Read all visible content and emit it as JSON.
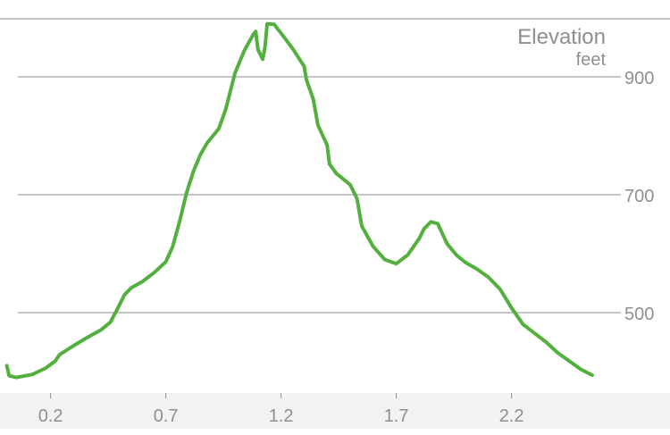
{
  "colors": {
    "line": "#53b03f",
    "grid": "#8e8e93",
    "text": "#8e8e93",
    "axis_band": "#f2f2f2",
    "background": "#ffffff"
  },
  "chart_data": {
    "type": "line",
    "title": "Elevation",
    "ylabel": "feet",
    "xlabel": "",
    "grid": true,
    "legend": "none",
    "xlim": [
      0.0,
      2.7
    ],
    "ylim": [
      385,
      1000
    ],
    "x_ticks": [
      "0.2",
      "0.7",
      "1.2",
      "1.7",
      "2.2"
    ],
    "x_tick_values": [
      0.2,
      0.7,
      1.2,
      1.7,
      2.2
    ],
    "y_ticks": [
      "500",
      "700",
      "900"
    ],
    "y_tick_values": [
      500,
      700,
      900
    ],
    "series": [
      {
        "values": [
          [
            0.01,
            410
          ],
          [
            0.02,
            393
          ],
          [
            0.05,
            390
          ],
          [
            0.12,
            395
          ],
          [
            0.18,
            406
          ],
          [
            0.22,
            418
          ],
          [
            0.24,
            429
          ],
          [
            0.3,
            444
          ],
          [
            0.36,
            458
          ],
          [
            0.42,
            471
          ],
          [
            0.46,
            484
          ],
          [
            0.5,
            514
          ],
          [
            0.52,
            530
          ],
          [
            0.55,
            542
          ],
          [
            0.6,
            553
          ],
          [
            0.65,
            568
          ],
          [
            0.7,
            586
          ],
          [
            0.73,
            612
          ],
          [
            0.76,
            655
          ],
          [
            0.79,
            703
          ],
          [
            0.82,
            740
          ],
          [
            0.85,
            768
          ],
          [
            0.88,
            788
          ],
          [
            0.93,
            812
          ],
          [
            0.96,
            845
          ],
          [
            1.0,
            906
          ],
          [
            1.04,
            944
          ],
          [
            1.08,
            972
          ],
          [
            1.09,
            977
          ],
          [
            1.1,
            946
          ],
          [
            1.12,
            930
          ],
          [
            1.13,
            949
          ],
          [
            1.14,
            990
          ],
          [
            1.17,
            989
          ],
          [
            1.2,
            974
          ],
          [
            1.25,
            948
          ],
          [
            1.3,
            918
          ],
          [
            1.31,
            895
          ],
          [
            1.34,
            862
          ],
          [
            1.36,
            818
          ],
          [
            1.4,
            784
          ],
          [
            1.41,
            752
          ],
          [
            1.44,
            736
          ],
          [
            1.5,
            717
          ],
          [
            1.53,
            693
          ],
          [
            1.55,
            647
          ],
          [
            1.6,
            612
          ],
          [
            1.65,
            590
          ],
          [
            1.7,
            583
          ],
          [
            1.75,
            598
          ],
          [
            1.8,
            626
          ],
          [
            1.82,
            642
          ],
          [
            1.85,
            654
          ],
          [
            1.88,
            651
          ],
          [
            1.92,
            617
          ],
          [
            1.96,
            598
          ],
          [
            2.0,
            585
          ],
          [
            2.05,
            574
          ],
          [
            2.1,
            560
          ],
          [
            2.15,
            540
          ],
          [
            2.2,
            508
          ],
          [
            2.25,
            480
          ],
          [
            2.3,
            465
          ],
          [
            2.35,
            450
          ],
          [
            2.4,
            432
          ],
          [
            2.45,
            418
          ],
          [
            2.5,
            404
          ],
          [
            2.55,
            394
          ]
        ]
      }
    ]
  }
}
